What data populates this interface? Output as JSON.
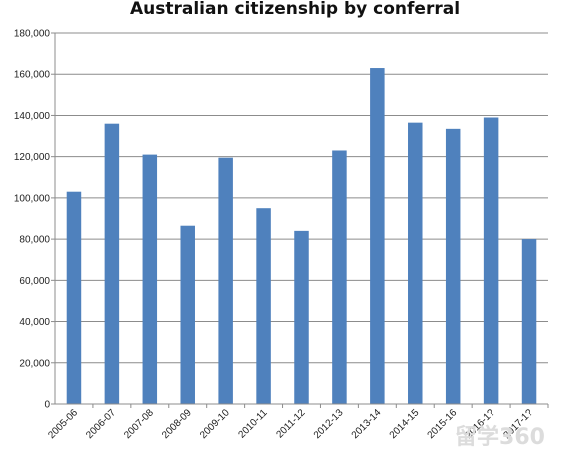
{
  "chart_data": {
    "type": "bar",
    "title": "Australian citizenship by conferral",
    "xlabel": "",
    "ylabel": "",
    "categories": [
      "2005-06",
      "2006-07",
      "2007-08",
      "2008-09",
      "2009-10",
      "2010-11",
      "2011-12",
      "2012-13",
      "2013-14",
      "2014-15",
      "2015-16",
      "2016-17",
      "2017-18"
    ],
    "category_labels": [
      "2005-06",
      "2006-07",
      "2007-08",
      "2008-09",
      "2009-10",
      "2010-11",
      "2011-12",
      "2012-13",
      "2013-14",
      "2014-15",
      "2015-16",
      "2016-1?",
      "2017-1?"
    ],
    "values": [
      103000,
      136000,
      121000,
      86500,
      119500,
      95000,
      84000,
      123000,
      163000,
      136500,
      133500,
      139000,
      80000
    ],
    "ylim": [
      0,
      180000
    ],
    "yticks": [
      0,
      20000,
      40000,
      60000,
      80000,
      100000,
      120000,
      140000,
      160000,
      180000
    ],
    "ytick_labels": [
      "0",
      "20,000",
      "40,000",
      "60,000",
      "80,000",
      "100,000",
      "120,000",
      "140,000",
      "160,000",
      "180,000"
    ],
    "grid": true,
    "legend": "none",
    "bar_color": "#4f81bd"
  },
  "watermark": "留学360"
}
